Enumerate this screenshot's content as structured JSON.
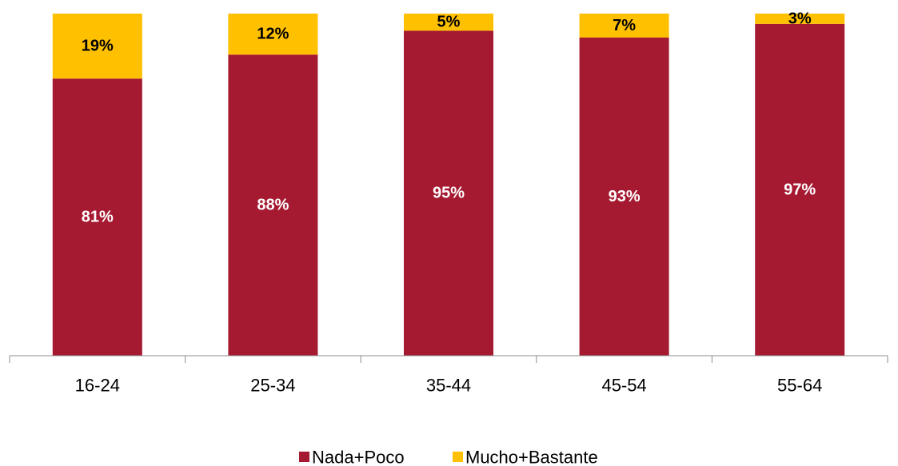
{
  "chart_data": {
    "type": "bar",
    "stacked": true,
    "normalized_percent": true,
    "categories": [
      "16-24",
      "25-34",
      "35-44",
      "45-54",
      "55-64"
    ],
    "series": [
      {
        "name": "Nada+Poco",
        "values": [
          81,
          88,
          95,
          93,
          97
        ],
        "labels": [
          "81%",
          "88%",
          "95%",
          "93%",
          "97%"
        ],
        "color": "#A51A31",
        "label_color": "#FFFFFF"
      },
      {
        "name": "Mucho+Bastante",
        "values": [
          19,
          12,
          5,
          7,
          3
        ],
        "labels": [
          "19%",
          "12%",
          "5%",
          "7%",
          "3%"
        ],
        "color": "#FFC000",
        "label_color": "#000000"
      }
    ],
    "ylim": [
      0,
      100
    ],
    "grid": false,
    "legend_position": "bottom"
  }
}
